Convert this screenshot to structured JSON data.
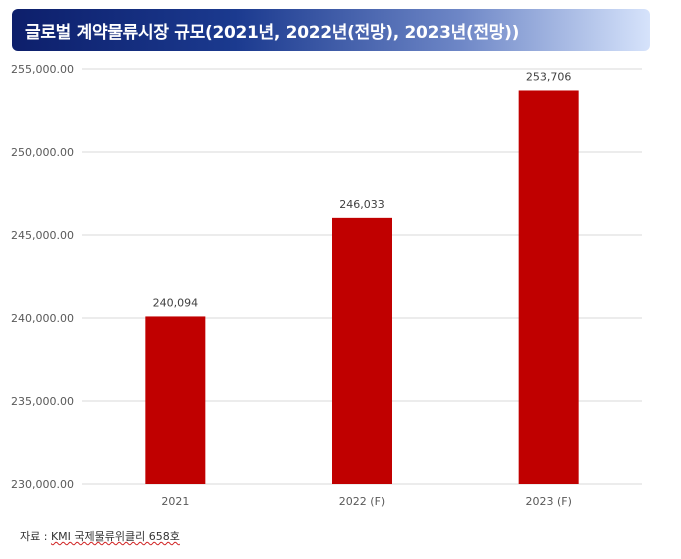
{
  "title": "글로벌 계약물류시장 규모(2021년, 2022년(전망), 2023년(전망))",
  "source": {
    "prefix": "자료 : ",
    "text": "KMI 국제물류위클리 658호"
  },
  "colors": {
    "bar": "#c00000",
    "grid": "#d9d9d9",
    "title_bg_start": "#0d1f6b",
    "title_bg_end": "#d6e3fb"
  },
  "chart_data": {
    "type": "bar",
    "categories": [
      "2021",
      "2022 (F)",
      "2023 (F)"
    ],
    "values": [
      240094,
      246033,
      253706
    ],
    "data_labels": [
      "240,094",
      "246,033",
      "253,706"
    ],
    "ylim": [
      230000,
      255000
    ],
    "yticks": [
      230000,
      235000,
      240000,
      245000,
      250000,
      255000
    ],
    "ytick_labels": [
      "230,000.00",
      "235,000.00",
      "240,000.00",
      "245,000.00",
      "250,000.00",
      "255,000.00"
    ],
    "grid": true,
    "legend": "none"
  }
}
